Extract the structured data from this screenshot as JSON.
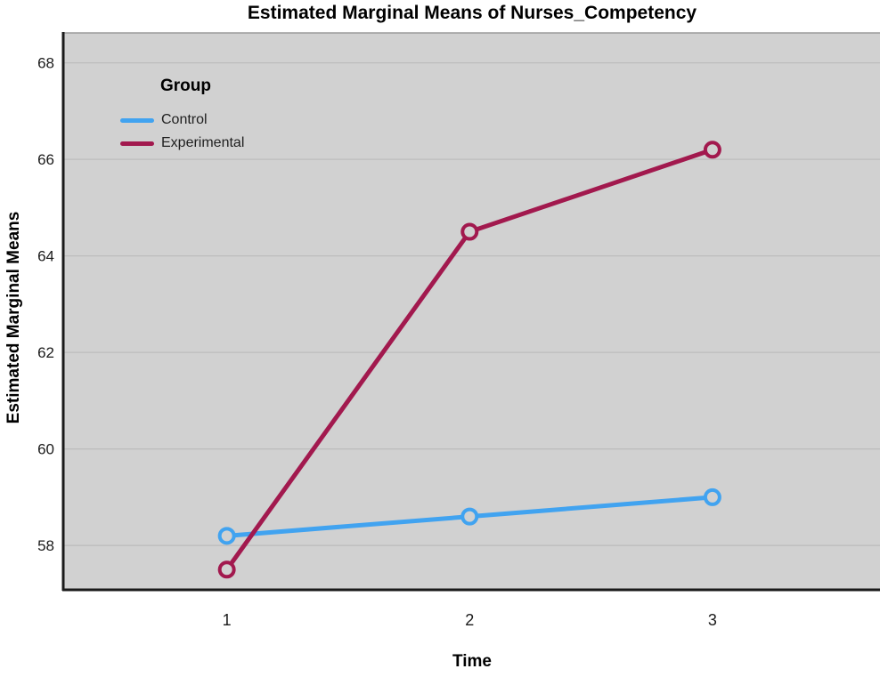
{
  "chart_data": {
    "type": "line",
    "title": "Estimated Marginal Means of Nurses_Competency",
    "xlabel": "Time",
    "ylabel": "Estimated Marginal Means",
    "x": [
      1,
      2,
      3
    ],
    "xticklabels": [
      "1",
      "2",
      "3"
    ],
    "yticks": [
      58,
      60,
      62,
      64,
      66,
      68
    ],
    "xlim": [
      0.33,
      3.69
    ],
    "ylim": [
      57.1,
      68.62
    ],
    "grid": "horizontal",
    "legend": {
      "title": "Group",
      "position": "top-left-inside"
    },
    "series": [
      {
        "name": "Control",
        "color": "#41a3f0",
        "values": [
          58.2,
          58.6,
          59.0
        ]
      },
      {
        "name": "Experimental",
        "color": "#a2194e",
        "values": [
          57.5,
          64.5,
          66.2
        ]
      }
    ],
    "colors": {
      "plot_background": "#d1d1d1",
      "gridline": "#bdbdbd",
      "axis_line": "#1a1a1a",
      "plot_top_edge": "#9a9a9a",
      "tick_label": "#1a1a1a"
    },
    "marker": "open-circle"
  }
}
